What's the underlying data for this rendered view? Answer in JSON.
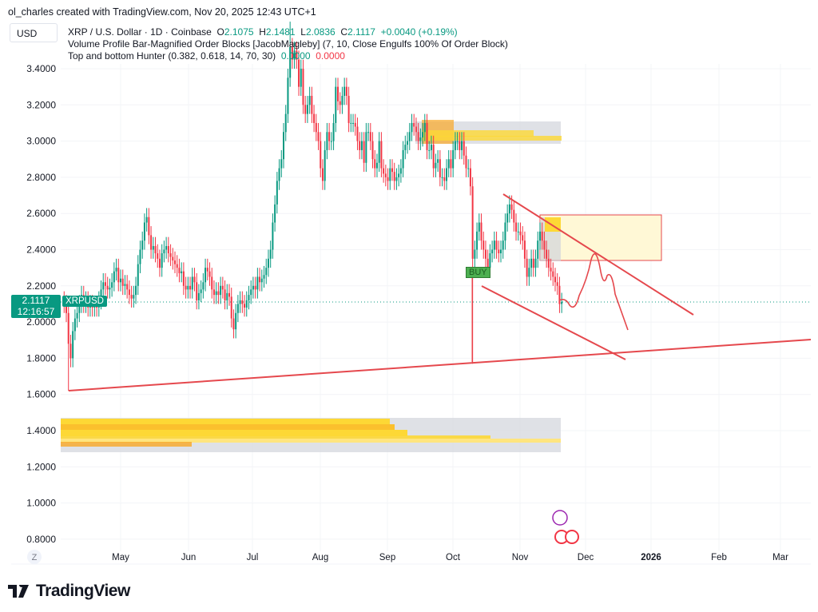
{
  "header": {
    "credit": "ol_charles created with TradingView.com, Nov 20, 2025 12:43 UTC+1",
    "currency": "USD"
  },
  "legend": {
    "symbol": "XRP / U.S. Dollar · 1D · Coinbase",
    "o_label": "O",
    "o": "2.1075",
    "h_label": "H",
    "h": "2.1481",
    "l_label": "L",
    "l": "2.0836",
    "c_label": "C",
    "c": "2.1117",
    "change": "+0.0040 (+0.19%)",
    "indicator1": "Volume Profile Bar-Magnified Order Blocks [JacobMagleby] (7, 10, Close Engulfs 100% Of Order Block)",
    "indicator2": "Top and bottom Hunter (0.382, 0.618, 14, 70, 30)",
    "ind2_v1": "0.0000",
    "ind2_v2": "0.0000"
  },
  "price_label": {
    "price": "2.1117",
    "countdown": "12:16:57",
    "symbol": "XRPUSD"
  },
  "buy_label": "BUY",
  "axis_z": "Z",
  "footer": {
    "brand": "TradingView"
  },
  "colors": {
    "up": "#089981",
    "down": "#f23645",
    "drawing": "#e5484d",
    "order_block": "#fdd835",
    "zone": "#d1d4dc"
  },
  "chart_data": {
    "type": "candlestick",
    "start_date": "2025-04-05",
    "interval": "1D",
    "closes": [
      2.1,
      2.05,
      1.88,
      1.8,
      1.95,
      2.02,
      2.05,
      2.1,
      2.15,
      2.1,
      2.12,
      2.08,
      2.1,
      2.08,
      2.09,
      2.08,
      2.12,
      2.18,
      2.22,
      2.2,
      2.18,
      2.19,
      2.22,
      2.28,
      2.3,
      2.22,
      2.24,
      2.2,
      2.21,
      2.18,
      2.15,
      2.13,
      2.15,
      2.2,
      2.32,
      2.4,
      2.45,
      2.55,
      2.58,
      2.48,
      2.4,
      2.42,
      2.38,
      2.35,
      2.3,
      2.38,
      2.4,
      2.42,
      2.38,
      2.36,
      2.34,
      2.32,
      2.3,
      2.27,
      2.28,
      2.2,
      2.18,
      2.2,
      2.18,
      2.25,
      2.22,
      2.12,
      2.16,
      2.18,
      2.22,
      2.3,
      2.28,
      2.25,
      2.18,
      2.15,
      2.17,
      2.15,
      2.2,
      2.18,
      2.12,
      2.16,
      2.14,
      2.02,
      1.96,
      2.05,
      2.1,
      2.12,
      2.1,
      2.08,
      2.12,
      2.15,
      2.18,
      2.2,
      2.18,
      2.25,
      2.22,
      2.24,
      2.26,
      2.3,
      2.35,
      2.4,
      2.55,
      2.65,
      2.78,
      2.85,
      2.9,
      3.05,
      3.15,
      3.35,
      3.52,
      3.45,
      3.5,
      3.45,
      3.3,
      3.4,
      3.2,
      3.15,
      3.2,
      3.25,
      3.15,
      3.1,
      3.05,
      3.0,
      2.85,
      2.78,
      2.95,
      3.05,
      3.0,
      3.0,
      3.1,
      3.3,
      3.22,
      3.2,
      3.25,
      3.3,
      3.25,
      3.1,
      3.1,
      3.1,
      3.08,
      3.0,
      2.95,
      3.0,
      2.88,
      3.05,
      3.05,
      3.0,
      2.9,
      2.85,
      2.88,
      3.0,
      2.85,
      2.82,
      2.8,
      2.78,
      2.85,
      2.83,
      2.78,
      2.8,
      2.82,
      2.85,
      2.95,
      2.98,
      3.0,
      3.05,
      3.1,
      3.08,
      3.05,
      3.0,
      3.02,
      3.05,
      3.1,
      2.95,
      2.95,
      2.98,
      2.85,
      2.88,
      2.9,
      2.8,
      2.8,
      2.78,
      2.85,
      2.9,
      2.85,
      2.95,
      3.0,
      3.0,
      2.95,
      3.0,
      2.92,
      2.85,
      2.85,
      2.75,
      2.35,
      2.4,
      2.5,
      2.55,
      2.45,
      2.4,
      2.35,
      2.3,
      2.38,
      2.4,
      2.45,
      2.4,
      2.38,
      2.4,
      2.45,
      2.55,
      2.6,
      2.65,
      2.62,
      2.55,
      2.5,
      2.5,
      2.48,
      2.45,
      2.35,
      2.25,
      2.3,
      2.35,
      2.3,
      2.35,
      2.45,
      2.5,
      2.45,
      2.4,
      2.35,
      2.3,
      2.28,
      2.25,
      2.22,
      2.2,
      2.1,
      2.1117
    ],
    "wick_extremes": [
      {
        "date": "2025-04-07",
        "low": 1.62
      },
      {
        "date": "2025-10-10",
        "low": 1.77
      },
      {
        "date": "2025-07-18",
        "high": 3.66
      }
    ],
    "y_ticks": [
      "3.4000",
      "3.2000",
      "3.0000",
      "2.8000",
      "2.6000",
      "2.4000",
      "2.2000",
      "2.0000",
      "1.8000",
      "1.6000",
      "1.4000",
      "1.2000",
      "1.0000",
      "0.8000"
    ],
    "x_ticks": [
      "May",
      "Jun",
      "Jul",
      "Aug",
      "Sep",
      "Oct",
      "Nov",
      "Dec",
      "2026",
      "Feb",
      "Mar"
    ],
    "ylim": [
      0.75,
      3.7
    ],
    "current_price": 2.1117
  }
}
